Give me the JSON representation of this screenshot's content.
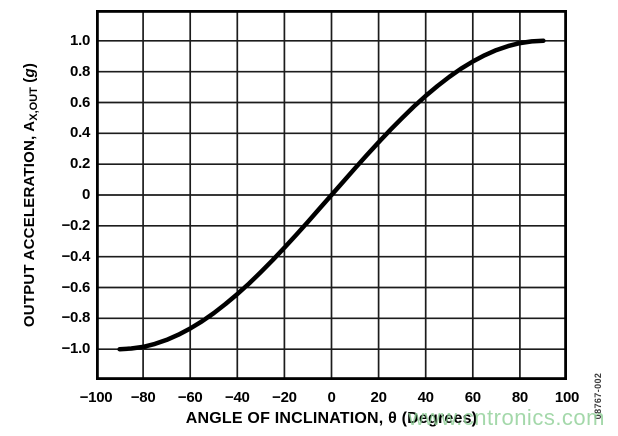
{
  "figure_code": "08767-002",
  "watermark": {
    "text": "www.cntronics.com",
    "color": "#8ecf96"
  },
  "chart_data": {
    "type": "line",
    "title": "",
    "x_title": "ANGLE OF INCLINATION, θ (Degrees)",
    "y_title_plain": "OUTPUT ACCELERATION, AX,OUT (g)",
    "y_title_parts": {
      "prefix": "OUTPUT ACCELERATION, A",
      "subscript": "X,OUT",
      "open": " (",
      "italic": "g",
      "close": ")"
    },
    "xlim": [
      -100,
      100
    ],
    "ylim": [
      -1.2,
      1.2
    ],
    "grid": true,
    "legend": "none",
    "colors": {
      "line": "#000000",
      "grid": "#1c1c1c",
      "frame": "#000000",
      "text": "#000000"
    },
    "x_ticks": [
      {
        "v": -100,
        "label": "−100"
      },
      {
        "v": -80,
        "label": "−80"
      },
      {
        "v": -60,
        "label": "−60"
      },
      {
        "v": -40,
        "label": "−40"
      },
      {
        "v": -20,
        "label": "−20"
      },
      {
        "v": 0,
        "label": "0"
      },
      {
        "v": 20,
        "label": "20"
      },
      {
        "v": 40,
        "label": "40"
      },
      {
        "v": 60,
        "label": "60"
      },
      {
        "v": 80,
        "label": "80"
      },
      {
        "v": 100,
        "label": "100"
      }
    ],
    "y_ticks": [
      {
        "v": 1.0,
        "label": "1.0"
      },
      {
        "v": 0.8,
        "label": "0.8"
      },
      {
        "v": 0.6,
        "label": "0.6"
      },
      {
        "v": 0.4,
        "label": "0.4"
      },
      {
        "v": 0.2,
        "label": "0.2"
      },
      {
        "v": 0.0,
        "label": "0"
      },
      {
        "v": -0.2,
        "label": "−0.2"
      },
      {
        "v": -0.4,
        "label": "−0.4"
      },
      {
        "v": -0.6,
        "label": "−0.6"
      },
      {
        "v": -0.8,
        "label": "−0.8"
      },
      {
        "v": -1.0,
        "label": "−1.0"
      }
    ],
    "series": [
      {
        "points": [
          [
            -90,
            -1.0
          ],
          [
            -85,
            -0.996
          ],
          [
            -80,
            -0.985
          ],
          [
            -75,
            -0.966
          ],
          [
            -70,
            -0.94
          ],
          [
            -65,
            -0.906
          ],
          [
            -60,
            -0.866
          ],
          [
            -55,
            -0.819
          ],
          [
            -50,
            -0.766
          ],
          [
            -45,
            -0.707
          ],
          [
            -40,
            -0.643
          ],
          [
            -35,
            -0.574
          ],
          [
            -30,
            -0.5
          ],
          [
            -25,
            -0.423
          ],
          [
            -20,
            -0.342
          ],
          [
            -15,
            -0.259
          ],
          [
            -10,
            -0.174
          ],
          [
            -5,
            -0.087
          ],
          [
            0,
            0.0
          ],
          [
            5,
            0.087
          ],
          [
            10,
            0.174
          ],
          [
            15,
            0.259
          ],
          [
            20,
            0.342
          ],
          [
            25,
            0.423
          ],
          [
            30,
            0.5
          ],
          [
            35,
            0.574
          ],
          [
            40,
            0.643
          ],
          [
            45,
            0.707
          ],
          [
            50,
            0.766
          ],
          [
            55,
            0.819
          ],
          [
            60,
            0.866
          ],
          [
            65,
            0.906
          ],
          [
            70,
            0.94
          ],
          [
            75,
            0.966
          ],
          [
            80,
            0.985
          ],
          [
            85,
            0.996
          ],
          [
            90,
            1.0
          ]
        ]
      }
    ]
  }
}
